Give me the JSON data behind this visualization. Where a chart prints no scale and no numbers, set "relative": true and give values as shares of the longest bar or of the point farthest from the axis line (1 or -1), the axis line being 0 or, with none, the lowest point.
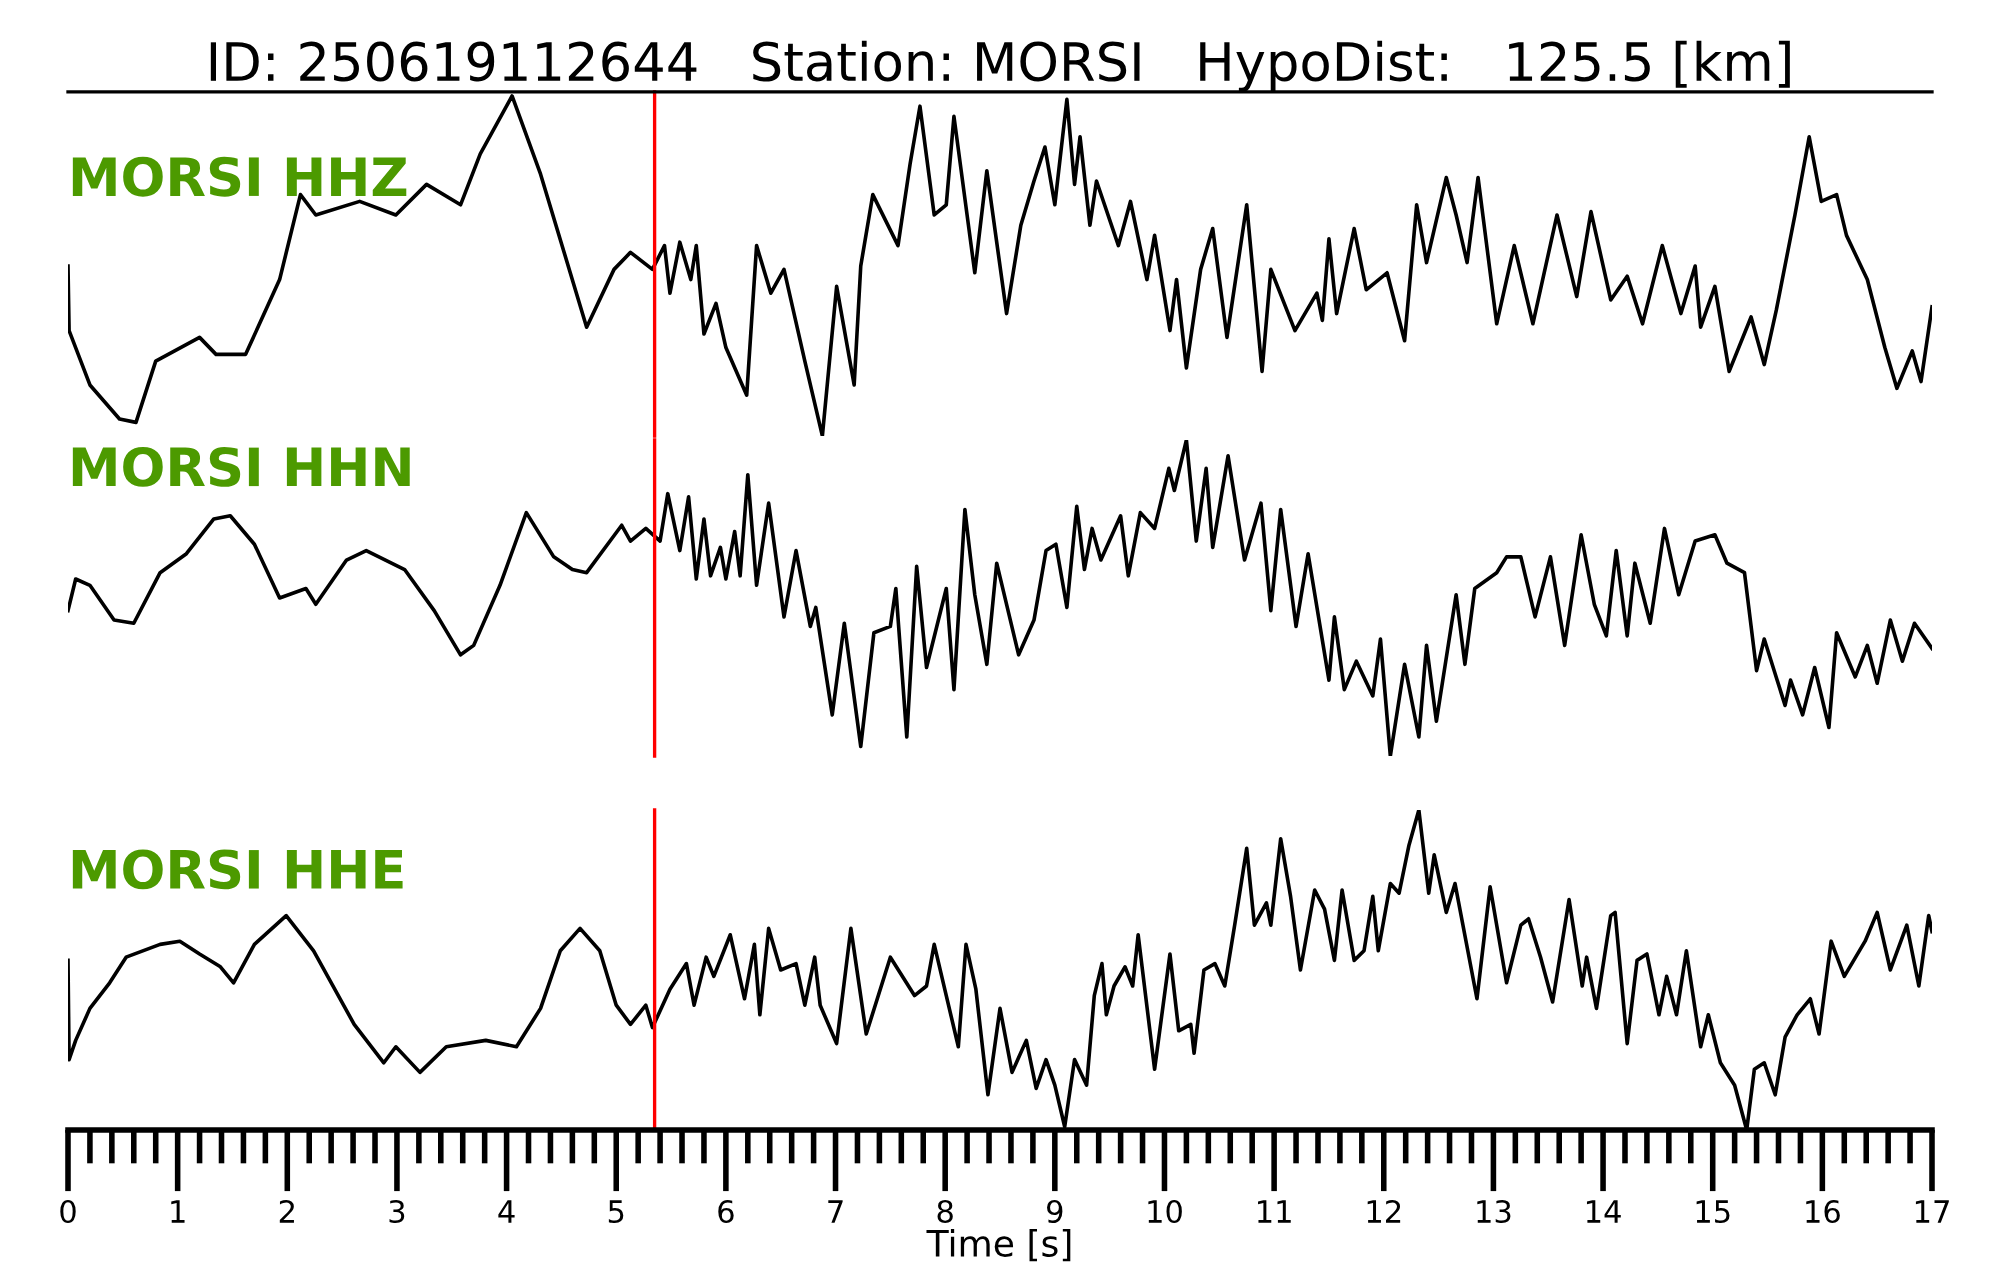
{
  "chart_data": [
    {
      "type": "line",
      "relative": true,
      "title": "ID: 250619112644   Station: MORSI   HypoDist:   125.5 [km]",
      "xlim": [
        0,
        17
      ],
      "tick_labels": false,
      "legend": false,
      "ref_lines": [
        {
          "axis": "x",
          "value": 5.35,
          "color": "#ff0000"
        }
      ],
      "series": [
        {
          "name": "MORSI HHZ",
          "color": "#000000",
          "x": [
            0,
            0.01,
            0.2,
            0.47,
            0.62,
            0.8,
            1.2,
            1.35,
            1.62,
            1.93,
            2.12,
            2.26,
            2.66,
            2.99,
            3.27,
            3.58,
            3.76,
            4.05,
            4.31,
            4.73,
            4.98,
            5.13,
            5.33,
            5.44,
            5.49,
            5.58,
            5.68,
            5.73,
            5.8,
            5.91,
            6.0,
            6.19,
            6.28,
            6.41,
            6.53,
            6.72,
            6.88,
            7.01,
            7.17,
            7.23,
            7.34,
            7.57,
            7.68,
            7.77,
            7.9,
            8.01,
            8.08,
            8.27,
            8.38,
            8.56,
            8.69,
            8.81,
            8.91,
            9.0,
            9.11,
            9.18,
            9.23,
            9.32,
            9.38,
            9.58,
            9.69,
            9.84,
            9.91,
            10.05,
            10.11,
            10.2,
            10.33,
            10.44,
            10.57,
            10.75,
            10.89,
            10.97,
            11.19,
            11.39,
            11.44,
            11.5,
            11.57,
            11.73,
            11.84,
            12.03,
            12.19,
            12.3,
            12.39,
            12.57,
            12.66,
            12.76,
            12.86,
            13.03,
            13.19,
            13.36,
            13.58,
            13.76,
            13.89,
            14.07,
            14.22,
            14.36,
            14.54,
            14.71,
            14.84,
            14.89,
            15.02,
            15.15,
            15.35,
            15.47,
            15.58,
            15.75,
            15.88,
            15.99,
            16.13,
            16.22,
            16.41,
            16.57,
            16.68,
            16.82,
            16.9,
            17.0
          ],
          "values": [
            0.5,
            0.31,
            0.15,
            0.05,
            0.04,
            0.22,
            0.29,
            0.24,
            0.24,
            0.46,
            0.71,
            0.65,
            0.69,
            0.65,
            0.74,
            0.68,
            0.83,
            1.0,
            0.77,
            0.32,
            0.49,
            0.54,
            0.49,
            0.56,
            0.42,
            0.57,
            0.46,
            0.56,
            0.3,
            0.39,
            0.26,
            0.12,
            0.56,
            0.42,
            0.49,
            0.22,
            0.0,
            0.44,
            0.15,
            0.5,
            0.71,
            0.56,
            0.8,
            0.97,
            0.65,
            0.68,
            0.94,
            0.48,
            0.78,
            0.36,
            0.62,
            0.75,
            0.85,
            0.68,
            0.99,
            0.74,
            0.88,
            0.62,
            0.75,
            0.56,
            0.69,
            0.46,
            0.59,
            0.31,
            0.46,
            0.2,
            0.49,
            0.61,
            0.29,
            0.68,
            0.19,
            0.49,
            0.31,
            0.42,
            0.34,
            0.58,
            0.36,
            0.61,
            0.43,
            0.48,
            0.28,
            0.68,
            0.51,
            0.76,
            0.65,
            0.51,
            0.76,
            0.33,
            0.56,
            0.33,
            0.65,
            0.41,
            0.66,
            0.4,
            0.47,
            0.33,
            0.56,
            0.36,
            0.5,
            0.32,
            0.44,
            0.19,
            0.35,
            0.21,
            0.37,
            0.65,
            0.88,
            0.69,
            0.71,
            0.59,
            0.46,
            0.26,
            0.14,
            0.25,
            0.16,
            0.38
          ]
        }
      ]
    },
    {
      "type": "line",
      "relative": true,
      "xlim": [
        0,
        17
      ],
      "tick_labels": false,
      "legend": false,
      "ref_lines": [
        {
          "axis": "x",
          "value": 5.35,
          "color": "#ff0000"
        }
      ],
      "series": [
        {
          "name": "MORSI HHN",
          "color": "#000000",
          "x": [
            0,
            0.07,
            0.2,
            0.42,
            0.6,
            0.84,
            1.08,
            1.33,
            1.48,
            1.7,
            1.93,
            2.17,
            2.26,
            2.54,
            2.72,
            3.07,
            3.34,
            3.58,
            3.7,
            3.94,
            4.18,
            4.43,
            4.6,
            4.73,
            5.05,
            5.13,
            5.27,
            5.4,
            5.47,
            5.58,
            5.66,
            5.73,
            5.8,
            5.86,
            5.95,
            6.0,
            6.08,
            6.13,
            6.2,
            6.28,
            6.39,
            6.53,
            6.64,
            6.77,
            6.82,
            6.97,
            7.08,
            7.23,
            7.35,
            7.5,
            7.55,
            7.65,
            7.74,
            7.83,
            8.01,
            8.08,
            8.18,
            8.27,
            8.38,
            8.47,
            8.67,
            8.81,
            8.92,
            9.01,
            9.11,
            9.2,
            9.27,
            9.34,
            9.42,
            9.6,
            9.67,
            9.78,
            9.91,
            10.04,
            10.09,
            10.2,
            10.29,
            10.38,
            10.44,
            10.58,
            10.73,
            10.88,
            10.97,
            11.06,
            11.2,
            11.31,
            11.5,
            11.55,
            11.64,
            11.75,
            11.9,
            11.97,
            12.06,
            12.19,
            12.32,
            12.39,
            12.48,
            12.66,
            12.74,
            12.83,
            13.03,
            13.12,
            13.25,
            13.38,
            13.52,
            13.65,
            13.8,
            13.92,
            14.03,
            14.12,
            14.22,
            14.29,
            14.43,
            14.56,
            14.69,
            14.84,
            15.02,
            15.13,
            15.29,
            15.4,
            15.47,
            15.66,
            15.71,
            15.82,
            15.93,
            16.06,
            16.13,
            16.3,
            16.41,
            16.5,
            16.62,
            16.73,
            16.84,
            17.0
          ],
          "values": [
            0.46,
            0.56,
            0.54,
            0.43,
            0.42,
            0.58,
            0.64,
            0.75,
            0.76,
            0.67,
            0.5,
            0.53,
            0.48,
            0.62,
            0.65,
            0.59,
            0.46,
            0.32,
            0.35,
            0.54,
            0.77,
            0.63,
            0.59,
            0.58,
            0.73,
            0.68,
            0.72,
            0.68,
            0.83,
            0.65,
            0.82,
            0.56,
            0.75,
            0.57,
            0.66,
            0.56,
            0.71,
            0.57,
            0.89,
            0.54,
            0.8,
            0.44,
            0.65,
            0.41,
            0.47,
            0.13,
            0.42,
            0.03,
            0.39,
            0.41,
            0.53,
            0.06,
            0.6,
            0.28,
            0.53,
            0.21,
            0.78,
            0.51,
            0.29,
            0.61,
            0.32,
            0.43,
            0.65,
            0.67,
            0.47,
            0.79,
            0.59,
            0.72,
            0.62,
            0.76,
            0.57,
            0.77,
            0.72,
            0.91,
            0.84,
            1.0,
            0.68,
            0.91,
            0.66,
            0.95,
            0.62,
            0.8,
            0.46,
            0.78,
            0.41,
            0.64,
            0.24,
            0.44,
            0.21,
            0.3,
            0.19,
            0.37,
            0.0,
            0.29,
            0.06,
            0.35,
            0.11,
            0.51,
            0.29,
            0.53,
            0.58,
            0.63,
            0.63,
            0.44,
            0.63,
            0.35,
            0.7,
            0.48,
            0.38,
            0.65,
            0.38,
            0.61,
            0.42,
            0.72,
            0.51,
            0.68,
            0.7,
            0.61,
            0.58,
            0.27,
            0.37,
            0.16,
            0.24,
            0.13,
            0.28,
            0.09,
            0.39,
            0.25,
            0.35,
            0.23,
            0.43,
            0.3,
            0.42,
            0.34
          ]
        }
      ]
    },
    {
      "type": "line",
      "relative": true,
      "xlabel": "Time [s]",
      "xlim": [
        0,
        17
      ],
      "xticks": [
        0,
        1,
        2,
        3,
        4,
        5,
        6,
        7,
        8,
        9,
        10,
        11,
        12,
        13,
        14,
        15,
        16,
        17
      ],
      "tick_labels": "x",
      "legend": false,
      "ref_lines": [
        {
          "axis": "x",
          "value": 5.35,
          "color": "#ff0000"
        }
      ],
      "series": [
        {
          "name": "MORSI HHE",
          "color": "#000000",
          "x": [
            0,
            0.01,
            0.07,
            0.2,
            0.38,
            0.53,
            0.84,
            1.02,
            1.2,
            1.39,
            1.51,
            1.7,
            1.99,
            2.24,
            2.61,
            2.88,
            2.99,
            3.21,
            3.45,
            3.81,
            4.09,
            4.31,
            4.49,
            4.67,
            4.85,
            5.0,
            5.13,
            5.27,
            5.33,
            5.49,
            5.64,
            5.71,
            5.82,
            5.89,
            6.04,
            6.17,
            6.26,
            6.31,
            6.39,
            6.5,
            6.64,
            6.72,
            6.81,
            6.86,
            7.01,
            7.14,
            7.28,
            7.5,
            7.72,
            7.83,
            7.9,
            8.01,
            8.12,
            8.19,
            8.28,
            8.39,
            8.5,
            8.61,
            8.74,
            8.83,
            8.92,
            9.0,
            9.09,
            9.18,
            9.29,
            9.36,
            9.43,
            9.47,
            9.54,
            9.64,
            9.71,
            9.76,
            9.91,
            10.05,
            10.13,
            10.24,
            10.27,
            10.36,
            10.46,
            10.55,
            10.64,
            10.75,
            10.82,
            10.93,
            10.97,
            11.06,
            11.15,
            11.24,
            11.37,
            11.46,
            11.55,
            11.62,
            11.73,
            11.82,
            11.9,
            11.95,
            12.06,
            12.14,
            12.23,
            12.32,
            12.41,
            12.46,
            12.57,
            12.65,
            12.85,
            12.97,
            13.12,
            13.25,
            13.32,
            13.43,
            13.54,
            13.69,
            13.81,
            13.85,
            13.94,
            14.07,
            14.11,
            14.22,
            14.31,
            14.4,
            14.51,
            14.58,
            14.67,
            14.76,
            14.89,
            14.96,
            15.07,
            15.2,
            15.31,
            15.38,
            15.47,
            15.57,
            15.66,
            15.77,
            15.89,
            15.97,
            16.08,
            16.2,
            16.39,
            16.5,
            16.62,
            16.77,
            16.88,
            16.97,
            17.0
          ],
          "values": [
            0.53,
            0.22,
            0.28,
            0.38,
            0.46,
            0.54,
            0.58,
            0.59,
            0.55,
            0.51,
            0.46,
            0.58,
            0.67,
            0.56,
            0.33,
            0.21,
            0.26,
            0.18,
            0.26,
            0.28,
            0.26,
            0.38,
            0.56,
            0.63,
            0.56,
            0.39,
            0.33,
            0.39,
            0.32,
            0.44,
            0.52,
            0.39,
            0.54,
            0.48,
            0.61,
            0.41,
            0.58,
            0.36,
            0.63,
            0.5,
            0.52,
            0.39,
            0.54,
            0.39,
            0.27,
            0.63,
            0.3,
            0.54,
            0.42,
            0.45,
            0.58,
            0.42,
            0.26,
            0.58,
            0.44,
            0.11,
            0.38,
            0.18,
            0.28,
            0.13,
            0.22,
            0.14,
            0.01,
            0.22,
            0.14,
            0.42,
            0.52,
            0.36,
            0.45,
            0.51,
            0.45,
            0.61,
            0.19,
            0.55,
            0.31,
            0.33,
            0.24,
            0.5,
            0.52,
            0.45,
            0.64,
            0.88,
            0.64,
            0.71,
            0.64,
            0.91,
            0.73,
            0.5,
            0.75,
            0.69,
            0.53,
            0.75,
            0.53,
            0.56,
            0.73,
            0.56,
            0.77,
            0.74,
            0.89,
            1.0,
            0.74,
            0.86,
            0.68,
            0.77,
            0.41,
            0.76,
            0.46,
            0.64,
            0.66,
            0.54,
            0.4,
            0.72,
            0.45,
            0.54,
            0.38,
            0.67,
            0.68,
            0.27,
            0.53,
            0.55,
            0.36,
            0.48,
            0.36,
            0.56,
            0.26,
            0.36,
            0.21,
            0.14,
            0.0,
            0.19,
            0.21,
            0.11,
            0.29,
            0.36,
            0.41,
            0.3,
            0.59,
            0.48,
            0.59,
            0.68,
            0.5,
            0.64,
            0.45,
            0.67,
            0.62
          ]
        }
      ]
    }
  ]
}
